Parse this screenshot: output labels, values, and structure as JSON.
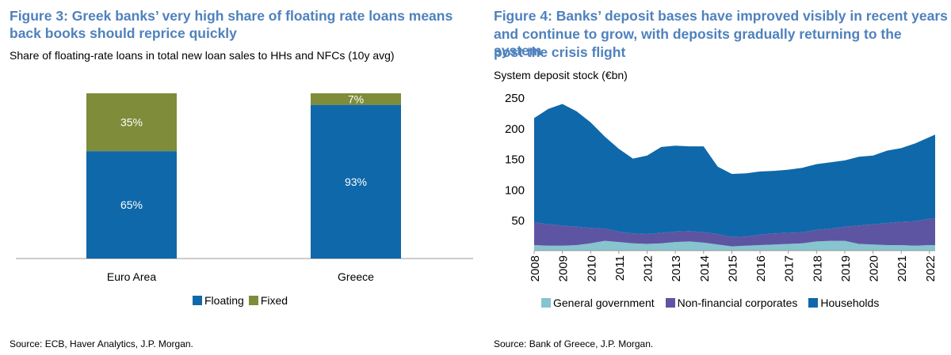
{
  "fig3": {
    "title_line1": "Figure 3: Greek banks’ very high share of floating rate loans means",
    "title_line2": "back books should reprice quickly",
    "subtitle": "Share of floating-rate loans in total new loan sales to HHs and NFCs (10y avg)",
    "source": "Source: ECB, Haver Analytics, J.P. Morgan."
  },
  "fig4": {
    "title_line1": "Figure 4: Banks’ deposit bases have improved visibly in recent years",
    "title_line2": "and continue to grow, with deposits gradually returning to the system",
    "title_line3": "post the crisis flight",
    "subtitle": "System deposit stock (€bn)",
    "source": "Source: Bank of Greece, J.P. Morgan."
  },
  "chart_data": [
    {
      "type": "bar",
      "stacked": true,
      "categories": [
        "Euro Area",
        "Greece"
      ],
      "series": [
        {
          "name": "Floating",
          "values": [
            65,
            93
          ],
          "labels": [
            "65%",
            "93%"
          ],
          "color": "#0f68a9"
        },
        {
          "name": "Fixed",
          "values": [
            35,
            7
          ],
          "labels": [
            "35%",
            "7%"
          ],
          "color": "#7f8c3a"
        }
      ],
      "ylim": [
        0,
        100
      ],
      "legend": "bottom-center",
      "grid": false
    },
    {
      "type": "area",
      "stacked": true,
      "x_ticks": [
        "2008",
        "2009",
        "2010",
        "2011",
        "2012",
        "2013",
        "2014",
        "2015",
        "2016",
        "2017",
        "2018",
        "2019",
        "2020",
        "2021",
        "2022"
      ],
      "y_ticks": [
        "50",
        "100",
        "150",
        "200",
        "250"
      ],
      "ylim": [
        0,
        250
      ],
      "xlim": [
        2008,
        2022.2
      ],
      "x": [
        2008.0,
        2008.5,
        2009.0,
        2009.5,
        2010.0,
        2010.5,
        2011.0,
        2011.5,
        2012.0,
        2012.5,
        2013.0,
        2013.5,
        2014.0,
        2014.5,
        2015.0,
        2015.5,
        2016.0,
        2016.5,
        2017.0,
        2017.5,
        2018.0,
        2018.5,
        2019.0,
        2019.5,
        2020.0,
        2020.5,
        2021.0,
        2021.5,
        2022.0,
        2022.2
      ],
      "series": [
        {
          "name": "General government",
          "color": "#86c4cf",
          "values": [
            9,
            8,
            8,
            9,
            12,
            16,
            14,
            12,
            11,
            12,
            14,
            15,
            13,
            10,
            7,
            8,
            9,
            10,
            11,
            12,
            15,
            16,
            16,
            11,
            10,
            9,
            9,
            8,
            9,
            9
          ]
        },
        {
          "name": "Non-financial corporates",
          "color": "#5e55a2",
          "values": [
            37,
            35,
            33,
            30,
            25,
            20,
            17,
            16,
            16,
            17,
            17,
            17,
            17,
            17,
            15,
            15,
            17,
            18,
            18,
            18,
            19,
            20,
            23,
            30,
            33,
            36,
            38,
            40,
            43,
            43
          ]
        },
        {
          "name": "Households",
          "color": "#0f68a9",
          "values": [
            170,
            188,
            198,
            188,
            172,
            150,
            135,
            122,
            128,
            140,
            140,
            138,
            140,
            110,
            103,
            103,
            103,
            102,
            103,
            105,
            107,
            108,
            108,
            112,
            112,
            118,
            120,
            127,
            133,
            137
          ]
        }
      ],
      "legend": "bottom",
      "grid": false
    }
  ]
}
